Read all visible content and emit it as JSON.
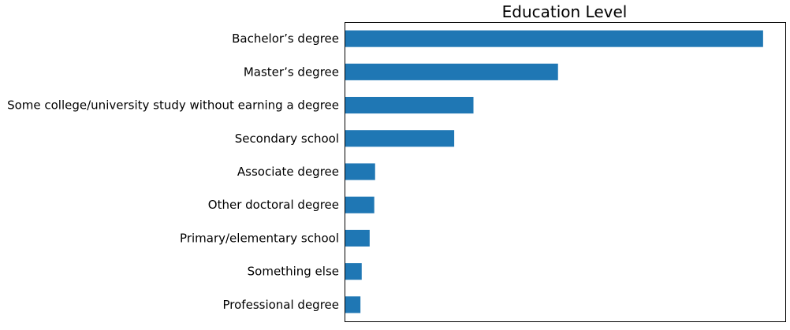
{
  "chart_data": {
    "type": "bar",
    "orientation": "horizontal",
    "title": "Education Level",
    "xlabel": "",
    "ylabel": "",
    "categories": [
      "Bachelor’s degree",
      "Master’s degree",
      "Some college/university study without earning a degree",
      "Secondary school",
      "Associate degree",
      "Other doctoral degree",
      "Primary/elementary school",
      "Something else",
      "Professional degree"
    ],
    "values": [
      100,
      51,
      30.8,
      26.2,
      7.3,
      7.1,
      6.0,
      4.1,
      3.8
    ],
    "xlim": [
      0,
      105.3
    ],
    "grid": false,
    "x_ticks_visible": false,
    "colors": {
      "bar": "#1f77b4",
      "axes": "#000000"
    }
  }
}
